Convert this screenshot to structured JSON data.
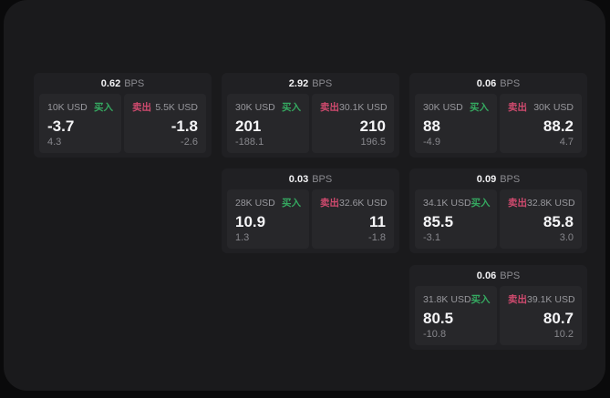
{
  "labels": {
    "bps_unit": "BPS",
    "buy": "买入",
    "sell": "卖出"
  },
  "colors": {
    "buy": "#35a860",
    "sell": "#cf4a6e",
    "page_bg": "#1a1a1c",
    "card_bg": "#202023",
    "subpanel_bg": "#27272a"
  },
  "cards": [
    {
      "bps": "0.62",
      "buy": {
        "amount": "10K USD",
        "value": "-3.7",
        "delta": "4.3"
      },
      "sell": {
        "amount": "5.5K USD",
        "value": "-1.8",
        "delta": "-2.6"
      }
    },
    {
      "bps": "2.92",
      "buy": {
        "amount": "30K USD",
        "value": "201",
        "delta": "-188.1"
      },
      "sell": {
        "amount": "30.1K USD",
        "value": "210",
        "delta": "196.5"
      }
    },
    {
      "bps": "0.06",
      "buy": {
        "amount": "30K USD",
        "value": "88",
        "delta": "-4.9"
      },
      "sell": {
        "amount": "30K USD",
        "value": "88.2",
        "delta": "4.7"
      }
    },
    {
      "bps": "0.03",
      "buy": {
        "amount": "28K USD",
        "value": "10.9",
        "delta": "1.3"
      },
      "sell": {
        "amount": "32.6K USD",
        "value": "11",
        "delta": "-1.8"
      }
    },
    {
      "bps": "0.09",
      "buy": {
        "amount": "34.1K USD",
        "value": "85.5",
        "delta": "-3.1"
      },
      "sell": {
        "amount": "32.8K USD",
        "value": "85.8",
        "delta": "3.0"
      }
    },
    {
      "bps": "0.06",
      "buy": {
        "amount": "31.8K USD",
        "value": "80.5",
        "delta": "-10.8"
      },
      "sell": {
        "amount": "39.1K USD",
        "value": "80.7",
        "delta": "10.2"
      }
    }
  ]
}
